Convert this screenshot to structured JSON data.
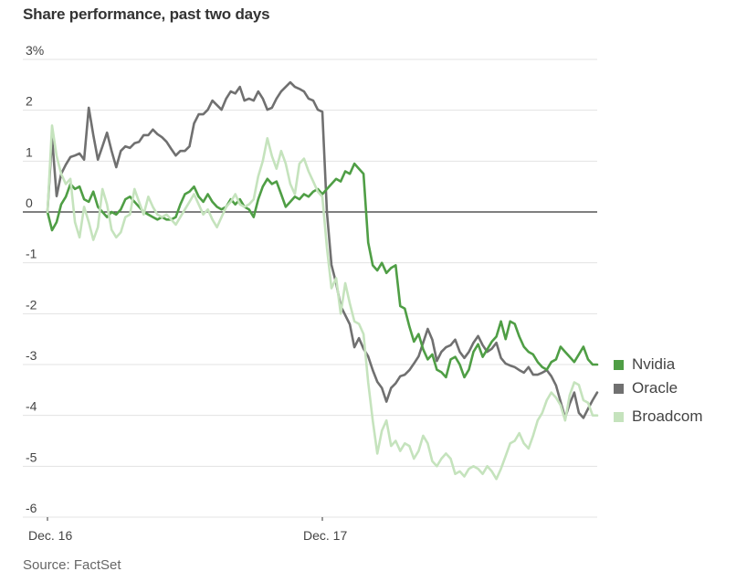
{
  "title": "Share performance, past two days",
  "source": "Source: FactSet",
  "legend": [
    {
      "label": "Nvidia",
      "color": "#4f9e45"
    },
    {
      "label": "Oracle",
      "color": "#707070"
    },
    {
      "label": "Broadcom",
      "color": "#c5e3bd"
    }
  ],
  "chart_data": {
    "type": "line",
    "title": "Share performance, past two days",
    "xlabel": "",
    "ylabel": "",
    "ylim": [
      -6,
      3
    ],
    "yticks": [
      3,
      2,
      1,
      0,
      -1,
      -2,
      -3,
      -4,
      -5,
      -6
    ],
    "ytick_labels": [
      "3%",
      "2",
      "1",
      "0",
      "-1",
      "-2",
      "-3",
      "-4",
      "-5",
      "-6"
    ],
    "xlim": [
      0,
      120
    ],
    "xticks": [
      {
        "x": 0,
        "label": "Dec. 16"
      },
      {
        "x": 60,
        "label": "Dec. 17"
      }
    ],
    "grid": true,
    "legend_position": "right",
    "unit": "percent change",
    "series": [
      {
        "name": "Oracle",
        "color": "#707070",
        "values": [
          0,
          1.47,
          0.31,
          0.75,
          0.93,
          1.08,
          1.11,
          1.15,
          1.03,
          2.05,
          1.51,
          1.03,
          1.29,
          1.56,
          1.2,
          0.88,
          1.2,
          1.29,
          1.26,
          1.35,
          1.38,
          1.51,
          1.51,
          1.62,
          1.53,
          1.47,
          1.38,
          1.24,
          1.11,
          1.2,
          1.2,
          1.29,
          1.74,
          1.92,
          1.92,
          2.01,
          2.19,
          2.1,
          2.01,
          2.23,
          2.37,
          2.33,
          2.46,
          2.19,
          2.23,
          2.19,
          2.37,
          2.23,
          2.01,
          2.05,
          2.23,
          2.37,
          2.46,
          2.55,
          2.46,
          2.42,
          2.37,
          2.23,
          2.19,
          2.01,
          1.97,
          0,
          -1.04,
          -1.4,
          -1.85,
          -2.03,
          -2.21,
          -2.66,
          -2.48,
          -2.69,
          -2.84,
          -3.11,
          -3.34,
          -3.46,
          -3.73,
          -3.46,
          -3.37,
          -3.23,
          -3.2,
          -3.11,
          -2.98,
          -2.84,
          -2.57,
          -2.3,
          -2.51,
          -2.93,
          -2.75,
          -2.66,
          -2.62,
          -2.51,
          -2.75,
          -2.87,
          -2.75,
          -2.57,
          -2.44,
          -2.62,
          -2.75,
          -2.69,
          -2.57,
          -2.87,
          -2.98,
          -3.02,
          -3.05,
          -3.11,
          -3.16,
          -3.05,
          -3.2,
          -3.2,
          -3.16,
          -3.11,
          -3.23,
          -3.41,
          -3.73,
          -4.05,
          -3.77,
          -3.55,
          -3.95,
          -4.05,
          -3.87,
          -3.7,
          -3.55
        ]
      },
      {
        "name": "Nvidia",
        "color": "#4f9e45",
        "values": [
          0,
          -0.36,
          -0.2,
          0.15,
          0.3,
          0.55,
          0.45,
          0.5,
          0.25,
          0.2,
          0.4,
          0.1,
          0,
          -0.1,
          0,
          -0.05,
          0.05,
          0.25,
          0.3,
          0.2,
          0.1,
          0,
          -0.05,
          -0.1,
          -0.15,
          -0.1,
          -0.15,
          -0.15,
          -0.1,
          0.15,
          0.35,
          0.4,
          0.5,
          0.3,
          0.2,
          0.35,
          0.2,
          0.1,
          0.05,
          0.1,
          0.25,
          0.15,
          0.25,
          0.1,
          0.05,
          -0.1,
          0.25,
          0.5,
          0.65,
          0.55,
          0.6,
          0.35,
          0.1,
          0.2,
          0.3,
          0.25,
          0.35,
          0.3,
          0.4,
          0.45,
          0.35,
          0.45,
          0.55,
          0.65,
          0.6,
          0.8,
          0.75,
          0.95,
          0.85,
          0.75,
          -0.6,
          -1.05,
          -1.15,
          -1.0,
          -1.2,
          -1.1,
          -1.05,
          -1.85,
          -1.9,
          -2.25,
          -2.55,
          -2.4,
          -2.7,
          -2.9,
          -2.8,
          -3.1,
          -3.15,
          -3.25,
          -2.9,
          -2.85,
          -3.0,
          -3.25,
          -3.1,
          -2.75,
          -2.6,
          -2.85,
          -2.7,
          -2.55,
          -2.45,
          -2.15,
          -2.5,
          -2.15,
          -2.2,
          -2.45,
          -2.65,
          -2.75,
          -2.8,
          -2.95,
          -3.05,
          -3.1,
          -2.95,
          -2.9,
          -2.65,
          -2.75,
          -2.85,
          -2.95,
          -2.8,
          -2.65,
          -2.9,
          -3.0,
          -3.0
        ]
      },
      {
        "name": "Broadcom",
        "color": "#c5e3bd",
        "values": [
          0,
          1.7,
          1.1,
          0.75,
          0.55,
          0.65,
          -0.2,
          -0.5,
          0.1,
          -0.2,
          -0.55,
          -0.3,
          0.45,
          0.15,
          -0.35,
          -0.5,
          -0.4,
          -0.1,
          -0.05,
          0.45,
          0.2,
          -0.05,
          0.3,
          0.1,
          -0.05,
          -0.1,
          -0.05,
          -0.15,
          -0.25,
          -0.1,
          0.05,
          0.2,
          0.35,
          0.15,
          -0.05,
          0.05,
          -0.15,
          -0.3,
          -0.1,
          0.1,
          0.2,
          0.35,
          0.15,
          0.1,
          0.15,
          0.25,
          0.7,
          1.0,
          1.45,
          1.1,
          0.85,
          1.2,
          0.95,
          0.55,
          0.35,
          0.95,
          1.05,
          0.8,
          0.6,
          0.4,
          0.3,
          -0.7,
          -1.5,
          -1.3,
          -2.0,
          -1.4,
          -1.8,
          -2.15,
          -2.2,
          -2.4,
          -3.35,
          -4.1,
          -4.75,
          -4.3,
          -4.1,
          -4.6,
          -4.5,
          -4.7,
          -4.55,
          -4.6,
          -4.85,
          -4.7,
          -4.4,
          -4.55,
          -4.9,
          -5.0,
          -4.85,
          -4.75,
          -4.85,
          -5.15,
          -5.1,
          -5.2,
          -5.05,
          -5.0,
          -5.05,
          -5.15,
          -5.0,
          -5.1,
          -5.25,
          -5.05,
          -4.8,
          -4.55,
          -4.5,
          -4.35,
          -4.55,
          -4.65,
          -4.4,
          -4.1,
          -3.95,
          -3.7,
          -3.55,
          -3.65,
          -3.8,
          -4.1,
          -3.6,
          -3.35,
          -3.4,
          -3.7,
          -3.75,
          -4.0,
          -4.0
        ]
      }
    ]
  }
}
